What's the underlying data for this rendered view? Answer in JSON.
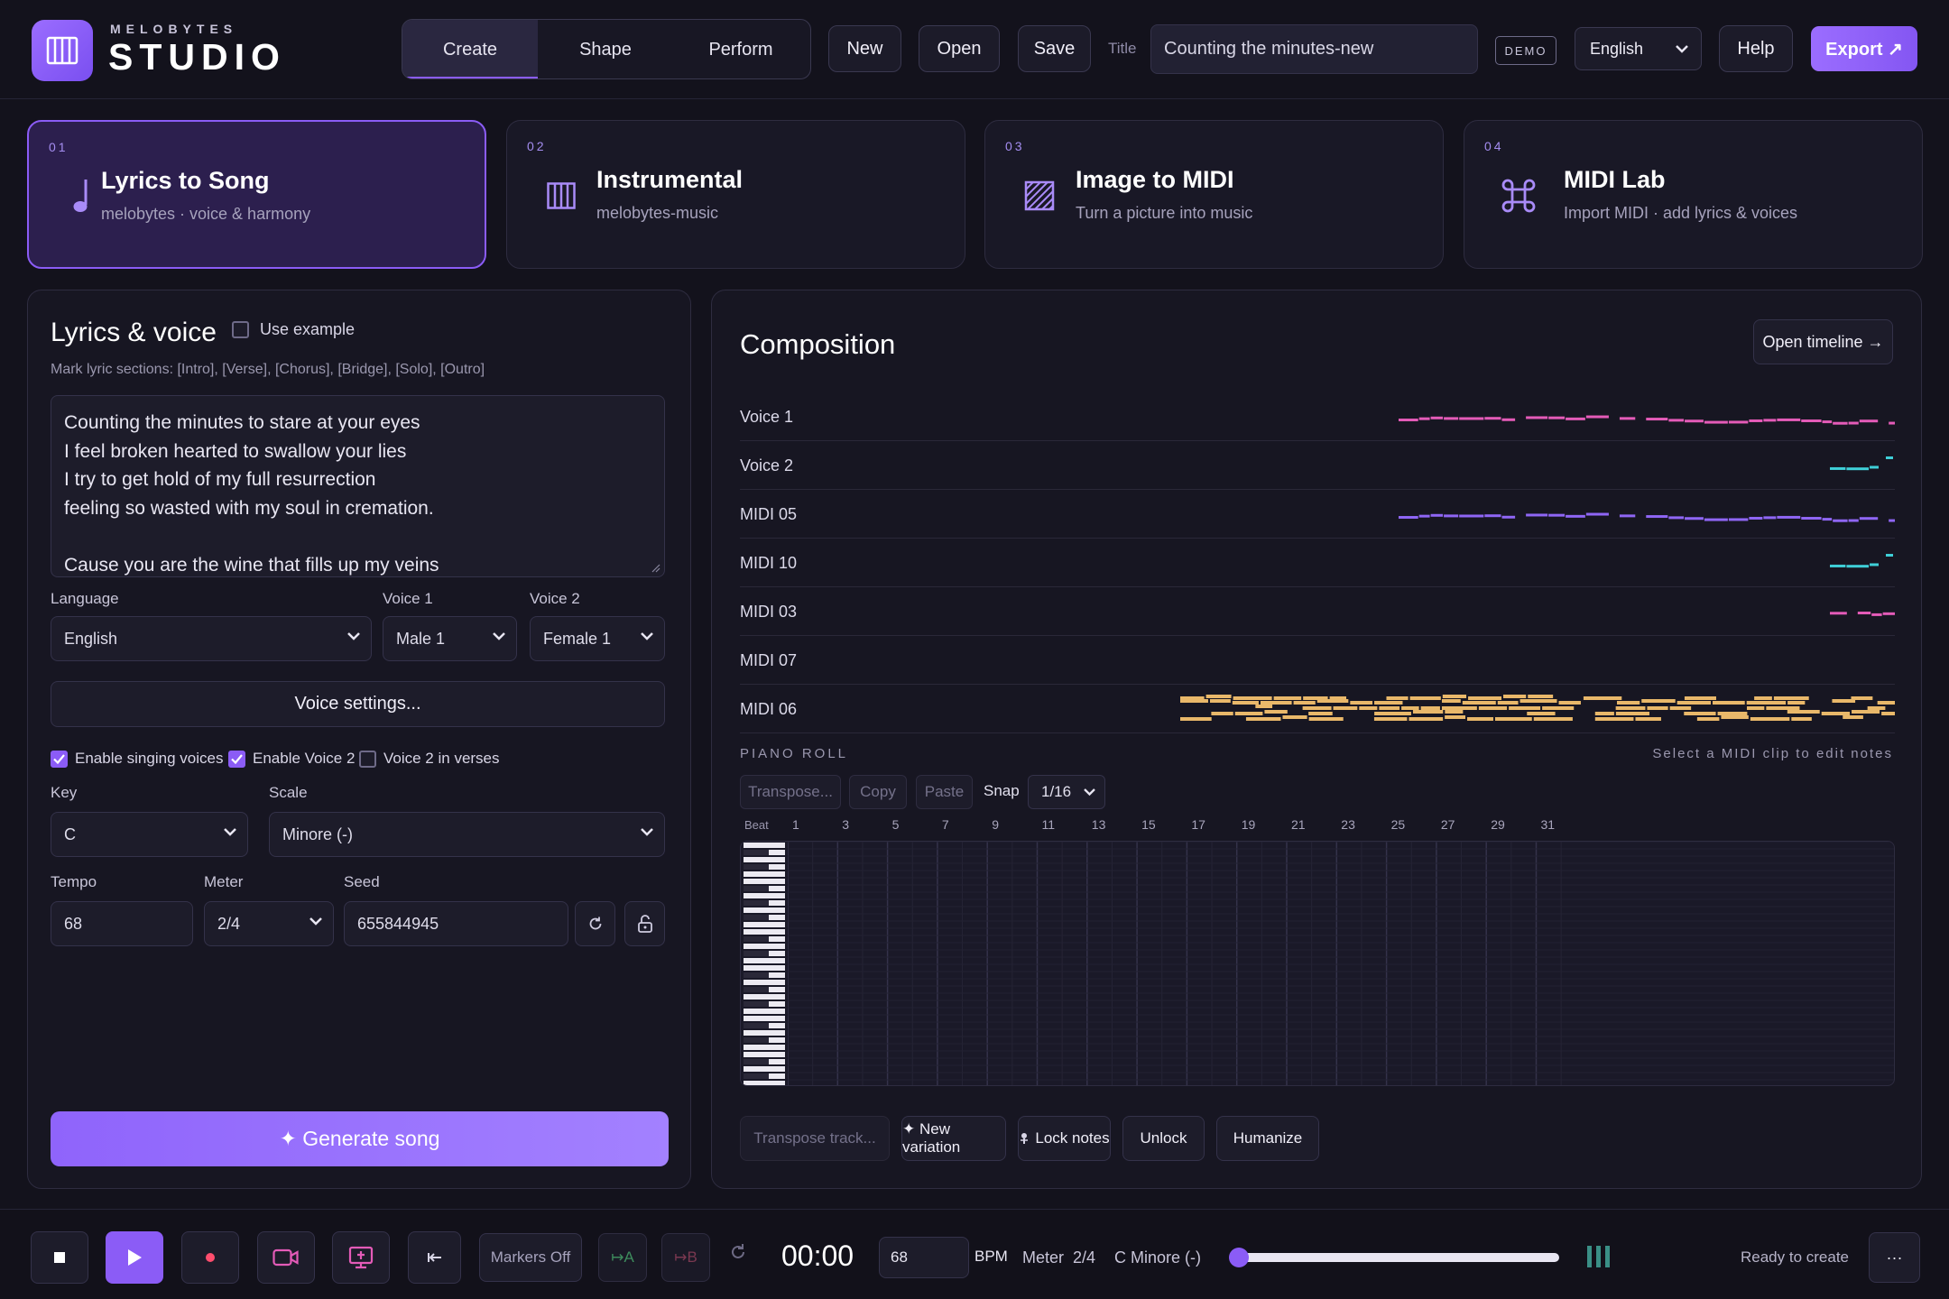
{
  "brand": {
    "small": "MELOBYTES",
    "big": "STUDIO"
  },
  "mode_tabs": [
    "Create",
    "Shape",
    "Perform"
  ],
  "header": {
    "new_label": "New",
    "open_label": "Open",
    "save_label": "Save",
    "title_label": "Title",
    "title_value": "Counting the minutes-new",
    "demo_badge": "DEMO",
    "language": "English",
    "help_label": "Help",
    "export_label": "Export ↗"
  },
  "cards": [
    {
      "num": "01",
      "title": "Lyrics to Song",
      "subtitle": "melobytes · voice & harmony",
      "icon": "music-note-icon"
    },
    {
      "num": "02",
      "title": "Instrumental",
      "subtitle": "melobytes-music",
      "icon": "bars-icon"
    },
    {
      "num": "03",
      "title": "Image to MIDI",
      "subtitle": "Turn a picture into music",
      "icon": "image-hatch-icon"
    },
    {
      "num": "04",
      "title": "MIDI Lab",
      "subtitle": "Import MIDI · add lyrics & voices",
      "icon": "command-icon"
    }
  ],
  "lyrics": {
    "title": "Lyrics & voice",
    "use_example": "Use example",
    "hint": "Mark lyric sections: [Intro], [Verse], [Chorus], [Bridge], [Solo], [Outro]",
    "lines": [
      "Counting the minutes to stare at your eyes",
      "I feel broken hearted to swallow your lies",
      "I try to get hold of my full resurrection",
      "feeling so wasted with my soul in cremation.",
      "",
      "Cause you are the wine that fills up my veins"
    ],
    "language_label": "Language",
    "language_value": "English",
    "voice1_label": "Voice 1",
    "voice1_value": "Male 1",
    "voice2_label": "Voice 2",
    "voice2_value": "Female 1",
    "voice_settings": "Voice settings...",
    "enable_singing": "Enable singing voices",
    "enable_voice2": "Enable Voice 2",
    "voice2_verses": "Voice 2 in verses",
    "key_label": "Key",
    "key_value": "C",
    "scale_label": "Scale",
    "scale_value": "Minore (-)",
    "tempo_label": "Tempo",
    "tempo_value": "68",
    "meter_label": "Meter",
    "meter_value": "2/4",
    "seed_label": "Seed",
    "seed_value": "655844945",
    "generate": "✦ Generate song"
  },
  "composition": {
    "title": "Composition",
    "open_timeline": "Open timeline →",
    "tracks": [
      {
        "name": "Voice 1",
        "color": "#e45bb8"
      },
      {
        "name": "Voice 2",
        "color": "#3fcfd8"
      },
      {
        "name": "MIDI 05",
        "color": "#8f66f5"
      },
      {
        "name": "MIDI 10",
        "color": "#3fcfd8"
      },
      {
        "name": "MIDI 03",
        "color": "#e45bb8"
      },
      {
        "name": "MIDI 07",
        "color": ""
      },
      {
        "name": "MIDI 06",
        "color": "#e9b86a"
      }
    ],
    "piano_roll_label": "PIANO ROLL",
    "piano_roll_hint": "Select a MIDI clip to edit notes",
    "transpose": "Transpose...",
    "copy": "Copy",
    "paste": "Paste",
    "snap_label": "Snap",
    "snap_value": "1/16",
    "beat_label": "Beat",
    "beats": [
      "1",
      "3",
      "5",
      "7",
      "9",
      "11",
      "13",
      "15",
      "17",
      "19",
      "21",
      "23",
      "25",
      "27",
      "29",
      "31"
    ],
    "transpose_track": "Transpose track...",
    "new_variation": "✦ New variation",
    "lock_notes": "Lock notes",
    "unlock": "Unlock",
    "humanize": "Humanize"
  },
  "transport": {
    "markers": "Markers Off",
    "marker_a": "↦A",
    "marker_b": "↦B",
    "time": "00:00",
    "bpm_value": "68",
    "bpm_label": "BPM",
    "meter_text": "Meter  2/4",
    "key_text": "C Minore (-)",
    "position": 0,
    "status": "Ready to create",
    "more": "···"
  }
}
